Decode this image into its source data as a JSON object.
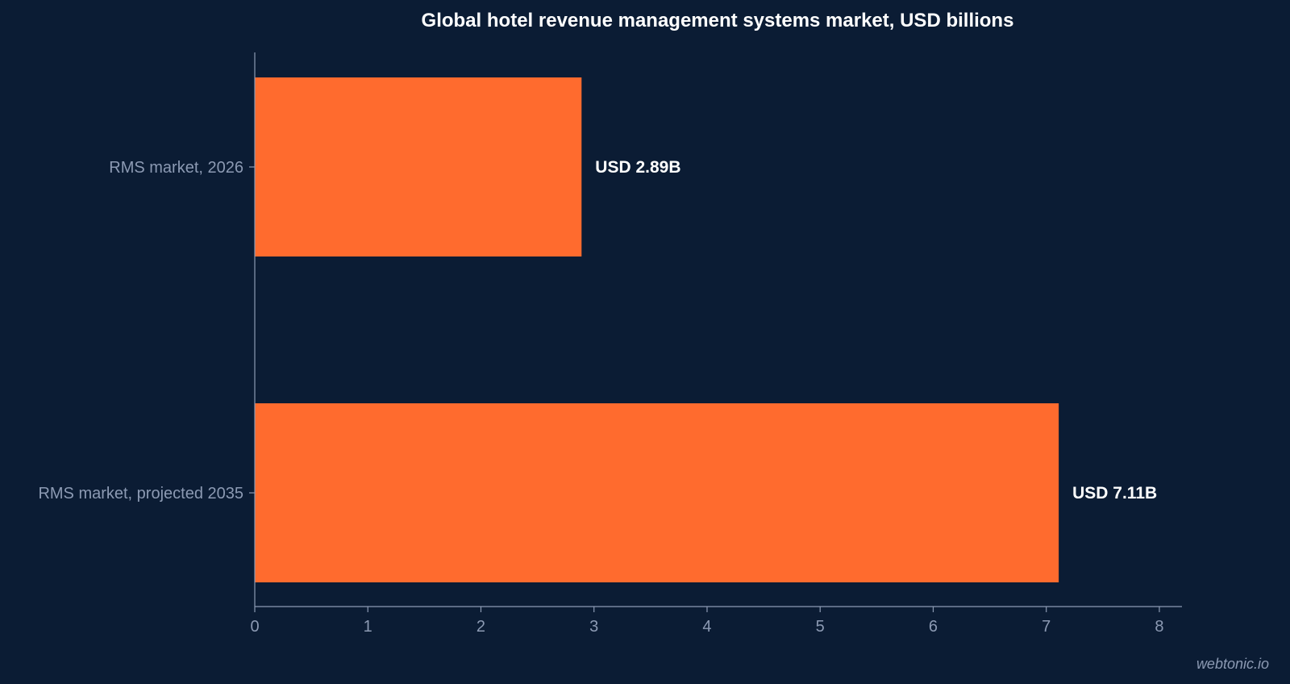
{
  "chart_data": {
    "type": "bar",
    "orientation": "horizontal",
    "title": "Global hotel revenue management systems market, USD billions",
    "categories": [
      "RMS market, 2026",
      "RMS market, projected 2035"
    ],
    "values": [
      2.89,
      7.11
    ],
    "data_labels": [
      "USD 2.89B",
      "USD 7.11B"
    ],
    "xlim": [
      0,
      8.2
    ],
    "xticks": [
      "0",
      "1",
      "2",
      "3",
      "4",
      "5",
      "6",
      "7",
      "8"
    ],
    "grid": false,
    "legend": "none",
    "colors": {
      "bar": "#ff6b2e",
      "axis": "#8c9ab3",
      "background": "#0b1c34",
      "title": "#ffffff",
      "data_label": "#ffffff"
    }
  },
  "watermark": "webtonic.io"
}
